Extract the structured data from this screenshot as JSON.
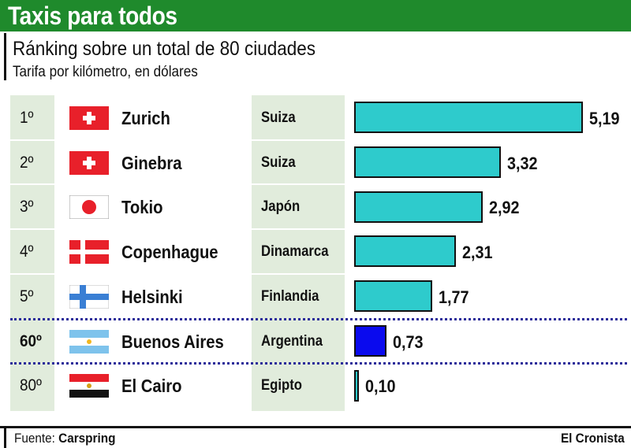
{
  "header": {
    "title": "Taxis para todos",
    "subtitle": "Ránking sobre un total de 80 ciudades",
    "subtitle2": "Tarifa por kilómetro, en dólares"
  },
  "colors": {
    "banner": "#1f8a2c",
    "bar_default": "#2ecbcc",
    "bar_highlight": "#0a0aee",
    "column_bg": "#e1ecdc"
  },
  "chart_data": {
    "type": "bar",
    "title": "Taxis para todos",
    "subtitle": "Ránking sobre un total de 80 ciudades",
    "ylabel": "Tarifa por kilómetro, en dólares",
    "categories": [
      "Zurich",
      "Ginebra",
      "Tokio",
      "Copenhague",
      "Helsinki",
      "Buenos Aires",
      "El Cairo"
    ],
    "values": [
      5.19,
      3.32,
      2.92,
      2.31,
      1.77,
      0.73,
      0.1
    ],
    "rows": [
      {
        "rank": "1º",
        "city": "Zurich",
        "country": "Suiza",
        "value": 5.19,
        "label": "5,19",
        "flag": "swiss-flag",
        "highlight": false
      },
      {
        "rank": "2º",
        "city": "Ginebra",
        "country": "Suiza",
        "value": 3.32,
        "label": "3,32",
        "flag": "swiss-flag",
        "highlight": false
      },
      {
        "rank": "3º",
        "city": "Tokio",
        "country": "Japón",
        "value": 2.92,
        "label": "2,92",
        "flag": "japan-flag",
        "highlight": false
      },
      {
        "rank": "4º",
        "city": "Copenhague",
        "country": "Dinamarca",
        "value": 2.31,
        "label": "2,31",
        "flag": "denmark-flag",
        "highlight": false
      },
      {
        "rank": "5º",
        "city": "Helsinki",
        "country": "Finlandia",
        "value": 1.77,
        "label": "1,77",
        "flag": "finland-flag",
        "highlight": false
      },
      {
        "rank": "60º",
        "city": "Buenos Aires",
        "country": "Argentina",
        "value": 0.73,
        "label": "0,73",
        "flag": "argentina-flag",
        "highlight": true
      },
      {
        "rank": "80º",
        "city": "El Cairo",
        "country": "Egipto",
        "value": 0.1,
        "label": "0,10",
        "flag": "egypt-flag",
        "highlight": false
      }
    ],
    "xlim": [
      0,
      5.19
    ],
    "grid": false,
    "legend": "none"
  },
  "footer": {
    "source_label": "Fuente:",
    "source_name": "Carspring",
    "publisher": "El Cronista"
  }
}
